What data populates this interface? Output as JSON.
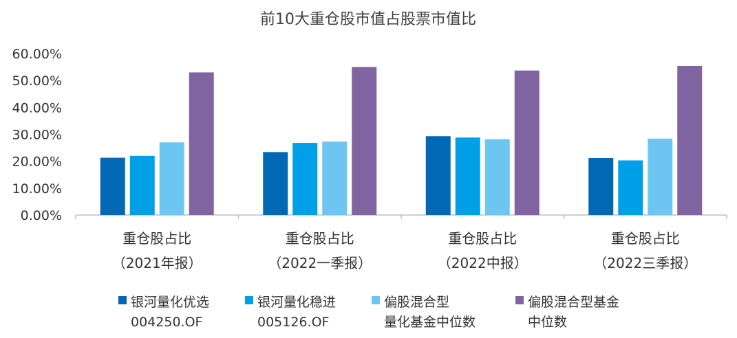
{
  "chart_data": {
    "type": "bar",
    "title": "前10大重仓股市值占股票市值比",
    "categories": [
      [
        "重仓股占比",
        "（2021年报）"
      ],
      [
        "重仓股占比",
        "（2022一季报）"
      ],
      [
        "重仓股占比",
        "（2022中报）"
      ],
      [
        "重仓股占比",
        "（2022三季报）"
      ]
    ],
    "series": [
      {
        "name_lines": [
          "银河量化优选",
          "004250.OF"
        ],
        "color": "#0068B5",
        "values": [
          21.3,
          23.4,
          29.3,
          21.2
        ]
      },
      {
        "name_lines": [
          "银河量化稳进",
          "005126.OF"
        ],
        "color": "#00A0E9",
        "values": [
          22.0,
          26.8,
          28.8,
          20.3
        ]
      },
      {
        "name_lines": [
          "偏股混合型",
          "量化基金中位数"
        ],
        "color": "#6DC6F2",
        "values": [
          27.0,
          27.3,
          28.2,
          28.4
        ]
      },
      {
        "name_lines": [
          "偏股混合型基金",
          "中位数"
        ],
        "color": "#8064A2",
        "values": [
          53.0,
          55.0,
          53.7,
          55.4
        ]
      }
    ],
    "y_ticks": [
      "0.00%",
      "10.00%",
      "20.00%",
      "30.00%",
      "40.00%",
      "50.00%",
      "60.00%"
    ],
    "ylim": [
      0,
      60
    ],
    "xlabel": "",
    "ylabel": "",
    "grid": false,
    "legend_position": "bottom"
  }
}
